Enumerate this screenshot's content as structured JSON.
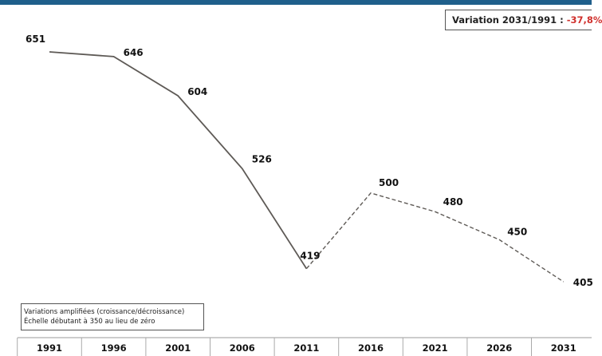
{
  "variation": {
    "label": "Variation 2031/1991 :",
    "value": "-37,8%",
    "value_color": "#d0312d"
  },
  "note": {
    "line1": "Variations amplifiées (croissance/décroissance)",
    "line2": "Échelle débutant à 350 au lieu de zéro"
  },
  "colors": {
    "header_bar": "#1f5f8b",
    "line": "#5e5a56"
  },
  "chart_data": {
    "type": "line",
    "categories": [
      "1991",
      "1996",
      "2001",
      "2006",
      "2011",
      "2016",
      "2021",
      "2026",
      "2031"
    ],
    "series": [
      {
        "values": [
          651,
          646,
          604,
          526,
          419,
          null,
          null,
          null,
          null
        ],
        "style": "solid"
      },
      {
        "values": [
          null,
          null,
          null,
          null,
          419,
          500,
          480,
          450,
          405
        ],
        "style": "dashed"
      }
    ],
    "ylim": [
      350,
      700
    ],
    "grid": false,
    "legend": "none"
  }
}
